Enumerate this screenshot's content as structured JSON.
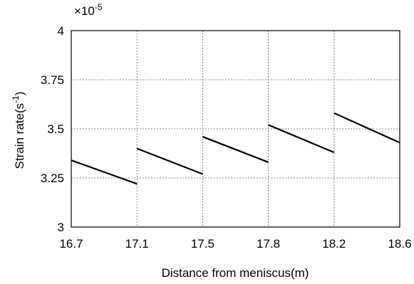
{
  "chart_data": {
    "type": "line",
    "title": "",
    "xlabel": "Distance from meniscus(m)",
    "ylabel_main": "Strain rate(s",
    "ylabel_sup": "-1",
    "ylabel_close": ")",
    "y_multiplier_prefix": "×10",
    "y_multiplier_exp": "-5",
    "xlim": [
      16.7,
      18.6
    ],
    "ylim": [
      3,
      4
    ],
    "x_ticks": [
      16.7,
      17.1,
      17.5,
      17.8,
      18.2,
      18.6
    ],
    "x_tick_labels": [
      "16.7",
      "17.1",
      "17.5",
      "17.8",
      "18.2",
      "18.6"
    ],
    "y_ticks": [
      3,
      3.25,
      3.5,
      3.75,
      4
    ],
    "y_tick_labels": [
      "3",
      "3.25",
      "3.5",
      "3.75",
      "4"
    ],
    "grid": true,
    "segments": [
      {
        "x": [
          16.7,
          17.1
        ],
        "y": [
          3.34,
          3.22
        ]
      },
      {
        "x": [
          17.1,
          17.5
        ],
        "y": [
          3.4,
          3.27
        ]
      },
      {
        "x": [
          17.5,
          17.8
        ],
        "y": [
          3.46,
          3.33
        ]
      },
      {
        "x": [
          17.8,
          18.2
        ],
        "y": [
          3.52,
          3.38
        ]
      },
      {
        "x": [
          18.2,
          18.6
        ],
        "y": [
          3.58,
          3.43
        ]
      }
    ]
  }
}
